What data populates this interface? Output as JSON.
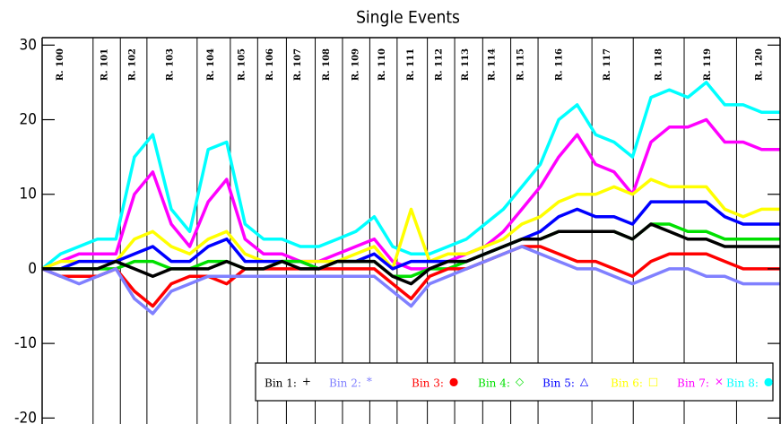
{
  "chart_data": {
    "type": "line",
    "title": "Single Events",
    "x": [
      0,
      2.5,
      5,
      7.5,
      10,
      12.5,
      15,
      17.5,
      20,
      22.5,
      25,
      27.5,
      30,
      32.5,
      35,
      37.5,
      40,
      42.5,
      45,
      47.5,
      50,
      52.5,
      55,
      57.5,
      60,
      62.5,
      65,
      67.5,
      70,
      72.5,
      75,
      77.5,
      80,
      82.5,
      85,
      87.5,
      90,
      92.5,
      95,
      97.5,
      100
    ],
    "xlim": [
      0,
      100
    ],
    "ylim": [
      -20.8,
      31
    ],
    "yticks": [
      -20,
      -10,
      0,
      10,
      20,
      30
    ],
    "run_boundaries": [
      6.9,
      10.6,
      14.2,
      21.0,
      25.5,
      29.2,
      33.1,
      37.0,
      40.7,
      44.4,
      48.1,
      52.2,
      55.9,
      59.7,
      63.5,
      67.2,
      74.5,
      80.1,
      87.0,
      94.1
    ],
    "runs": [
      {
        "x": 2.5,
        "label": "R. 100"
      },
      {
        "x": 8.5,
        "label": "R. 101"
      },
      {
        "x": 12.3,
        "label": "R. 102"
      },
      {
        "x": 17.4,
        "label": "R. 103"
      },
      {
        "x": 22.9,
        "label": "R. 104"
      },
      {
        "x": 27.1,
        "label": "R. 105"
      },
      {
        "x": 30.9,
        "label": "R. 106"
      },
      {
        "x": 34.7,
        "label": "R. 107"
      },
      {
        "x": 38.6,
        "label": "R. 108"
      },
      {
        "x": 42.5,
        "label": "R. 109"
      },
      {
        "x": 46.1,
        "label": "R. 110"
      },
      {
        "x": 50.0,
        "label": "R. 111"
      },
      {
        "x": 53.8,
        "label": "R. 112"
      },
      {
        "x": 57.4,
        "label": "R. 113"
      },
      {
        "x": 61.0,
        "label": "R. 114"
      },
      {
        "x": 64.9,
        "label": "R. 115"
      },
      {
        "x": 70.1,
        "label": "R. 116"
      },
      {
        "x": 76.6,
        "label": "R. 117"
      },
      {
        "x": 83.6,
        "label": "R. 118"
      },
      {
        "x": 90.2,
        "label": "R. 119"
      },
      {
        "x": 97.2,
        "label": "R. 120"
      }
    ],
    "series": [
      {
        "name": "Bin 1:",
        "marker": "+",
        "color": "#000000",
        "values": [
          0,
          0,
          0,
          0,
          1,
          0,
          -1,
          0,
          0,
          0,
          1,
          0,
          0,
          1,
          0,
          0,
          1,
          1,
          1,
          -1,
          -2,
          0,
          1,
          1,
          2,
          3,
          4,
          4,
          5,
          5,
          5,
          5,
          4,
          6,
          5,
          4,
          4,
          3,
          3,
          3,
          3
        ]
      },
      {
        "name": "Bin 2:",
        "marker": "*",
        "color": "#8080ff",
        "values": [
          0,
          -1,
          -2,
          -1,
          0,
          -4,
          -6,
          -3,
          -2,
          -1,
          -1,
          -1,
          -1,
          -1,
          -1,
          -1,
          -1,
          -1,
          -1,
          -3,
          -5,
          -2,
          -1,
          0,
          1,
          2,
          3,
          2,
          1,
          0,
          0,
          -1,
          -2,
          -1,
          0,
          0,
          -1,
          -1,
          -2,
          -2,
          -2
        ]
      },
      {
        "name": "Bin 3:",
        "marker": "●",
        "color": "#ff0000",
        "values": [
          0,
          -1,
          -1,
          -1,
          0,
          -3,
          -5,
          -2,
          -1,
          -1,
          -2,
          0,
          0,
          0,
          0,
          0,
          0,
          0,
          0,
          -2,
          -4,
          -1,
          0,
          0,
          1,
          2,
          3,
          3,
          2,
          1,
          1,
          0,
          -1,
          1,
          2,
          2,
          2,
          1,
          0,
          0,
          0
        ]
      },
      {
        "name": "Bin 4:",
        "marker": "◇",
        "color": "#00e000",
        "values": [
          0,
          0,
          0,
          0,
          0,
          1,
          1,
          0,
          0,
          1,
          1,
          0,
          0,
          1,
          1,
          0,
          1,
          1,
          1,
          -1,
          -1,
          0,
          0,
          1,
          2,
          3,
          4,
          4,
          5,
          5,
          5,
          5,
          4,
          6,
          6,
          5,
          5,
          4,
          4,
          4,
          4
        ]
      },
      {
        "name": "Bin 5:",
        "marker": "△",
        "color": "#0000ff",
        "values": [
          0,
          0,
          1,
          1,
          1,
          2,
          3,
          1,
          1,
          3,
          4,
          1,
          1,
          1,
          1,
          0,
          1,
          1,
          2,
          0,
          1,
          1,
          1,
          1,
          2,
          3,
          4,
          5,
          7,
          8,
          7,
          7,
          6,
          9,
          9,
          9,
          9,
          7,
          6,
          6,
          6
        ]
      },
      {
        "name": "Bin 6:",
        "marker": "□",
        "color": "#ffff00",
        "values": [
          0,
          1,
          1,
          1,
          1,
          4,
          5,
          3,
          2,
          4,
          5,
          2,
          1,
          1,
          1,
          1,
          1,
          2,
          3,
          0,
          8,
          1,
          2,
          2,
          3,
          4,
          6,
          7,
          9,
          10,
          10,
          11,
          10,
          12,
          11,
          11,
          11,
          8,
          7,
          8,
          8
        ]
      },
      {
        "name": "Bin 7:",
        "marker": "×",
        "color": "#ff00ff",
        "values": [
          0,
          1,
          2,
          2,
          2,
          10,
          13,
          6,
          3,
          9,
          12,
          4,
          2,
          2,
          1,
          1,
          2,
          3,
          4,
          1,
          0,
          0,
          1,
          2,
          3,
          5,
          8,
          11,
          15,
          18,
          14,
          13,
          10,
          17,
          19,
          19,
          20,
          17,
          17,
          16,
          16
        ]
      },
      {
        "name": "Bin 8:",
        "marker": "●",
        "color": "#00ffff",
        "values": [
          0,
          2,
          3,
          4,
          4,
          15,
          18,
          8,
          5,
          16,
          17,
          6,
          4,
          4,
          3,
          3,
          4,
          5,
          7,
          3,
          2,
          2,
          3,
          4,
          6,
          8,
          11,
          14,
          20,
          22,
          18,
          17,
          15,
          23,
          24,
          23,
          25,
          22,
          22,
          21,
          21
        ]
      }
    ]
  }
}
